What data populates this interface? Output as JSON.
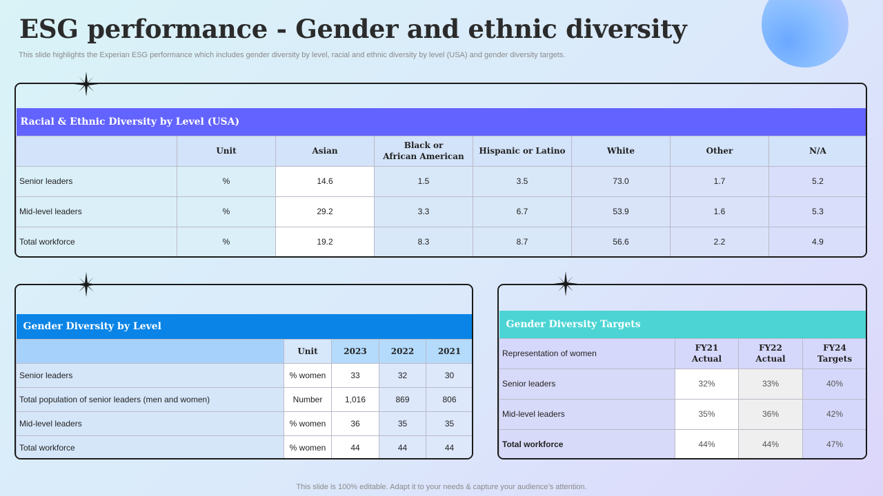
{
  "title": "ESG performance - Gender and ethnic diversity",
  "subtitle": "This slide highlights the Experian ESG performance which includes gender diversity by level,  racial and ethnic diversity  by level (USA) and gender diversity targets.",
  "footer": "This slide is 100% editable. Adapt it to your needs & capture your audience’s attention.",
  "colors": {
    "racial_header": "#6363ff",
    "gender_header": "#0a84e6",
    "targets_header": "#4cd4d4"
  },
  "racial": {
    "heading": "Racial & Ethnic  Diversity by Level (USA)",
    "columns": [
      "Unit",
      "Asian",
      "Black or",
      "African American",
      "Hispanic or Latino",
      "White",
      "Other",
      "N/A"
    ],
    "rows": [
      {
        "label": "Senior leaders",
        "unit": "%",
        "asian": "14.6",
        "black": "1.5",
        "hispanic": "3.5",
        "white": "73.0",
        "other": "1.7",
        "na": "5.2"
      },
      {
        "label": "Mid-level  leaders",
        "unit": "%",
        "asian": "29.2",
        "black": "3.3",
        "hispanic": "6.7",
        "white": "53.9",
        "other": "1.6",
        "na": "5.3"
      },
      {
        "label": "Total workforce",
        "unit": "%",
        "asian": "19.2",
        "black": "8.3",
        "hispanic": "8.7",
        "white": "56.6",
        "other": "2.2",
        "na": "4.9"
      }
    ]
  },
  "gender": {
    "heading": "Gender Diversity by Level",
    "columns": [
      "Unit",
      "2023",
      "2022",
      "2021"
    ],
    "rows": [
      {
        "label": "Senior leaders",
        "unit": "% women",
        "y2023": "33",
        "y2022": "32",
        "y2021": "30"
      },
      {
        "label": "Total population  of senior leaders  (men and women)",
        "unit": "Number",
        "y2023": "1,016",
        "y2022": "869",
        "y2021": "806"
      },
      {
        "label": "Mid-level  leaders",
        "unit": "% women",
        "y2023": "36",
        "y2022": "35",
        "y2021": "35"
      },
      {
        "label": "Total workforce",
        "unit": "% women",
        "y2023": "44",
        "y2022": "44",
        "y2021": "44"
      }
    ]
  },
  "targets": {
    "heading": "Gender Diversity Targets",
    "row_header": "Representation  of women",
    "columns": [
      {
        "line1": "FY21",
        "line2": "Actual"
      },
      {
        "line1": "FY22",
        "line2": "Actual"
      },
      {
        "line1": "FY24",
        "line2": "Targets"
      }
    ],
    "rows": [
      {
        "label": "Senior leaders",
        "fy21": "32%",
        "fy22": "33%",
        "fy24": "40%"
      },
      {
        "label": "Mid-level  leaders",
        "fy21": "35%",
        "fy22": "36%",
        "fy24": "42%"
      },
      {
        "label": "Total workforce",
        "fy21": "44%",
        "fy22": "44%",
        "fy24": "47%"
      }
    ]
  }
}
